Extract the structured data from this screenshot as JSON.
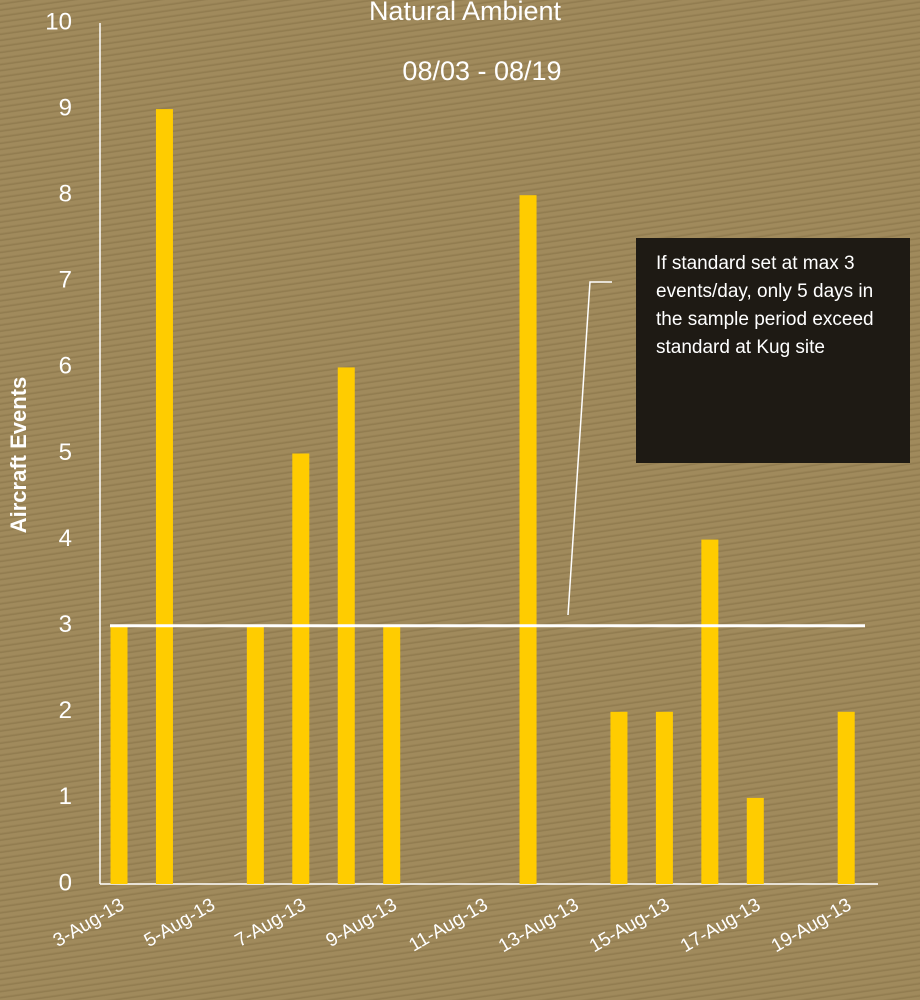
{
  "chart_data": {
    "type": "bar",
    "title": "Natural Ambient",
    "subtitle": "08/03 - 08/19",
    "y_label": "Aircraft Events",
    "categories": [
      "3-Aug-13",
      null,
      "5-Aug-13",
      null,
      "7-Aug-13",
      null,
      "9-Aug-13",
      null,
      "11-Aug-13",
      null,
      "13-Aug-13",
      null,
      "15-Aug-13",
      null,
      "17-Aug-13",
      null,
      "19-Aug-13"
    ],
    "values": [
      3,
      9,
      0,
      3,
      5,
      6,
      3,
      0,
      0,
      8,
      0,
      2,
      2,
      4,
      1,
      0,
      2
    ],
    "color": "#ffcc00",
    "ylim": [
      0,
      10
    ],
    "yticks": [
      0,
      1,
      2,
      3,
      4,
      5,
      6,
      7,
      8,
      9,
      10
    ],
    "grid": false,
    "threshold": 3,
    "annotation": "If standard set at max 3 events/day, only 5 days in the sample period exceed standard at Kug site"
  }
}
